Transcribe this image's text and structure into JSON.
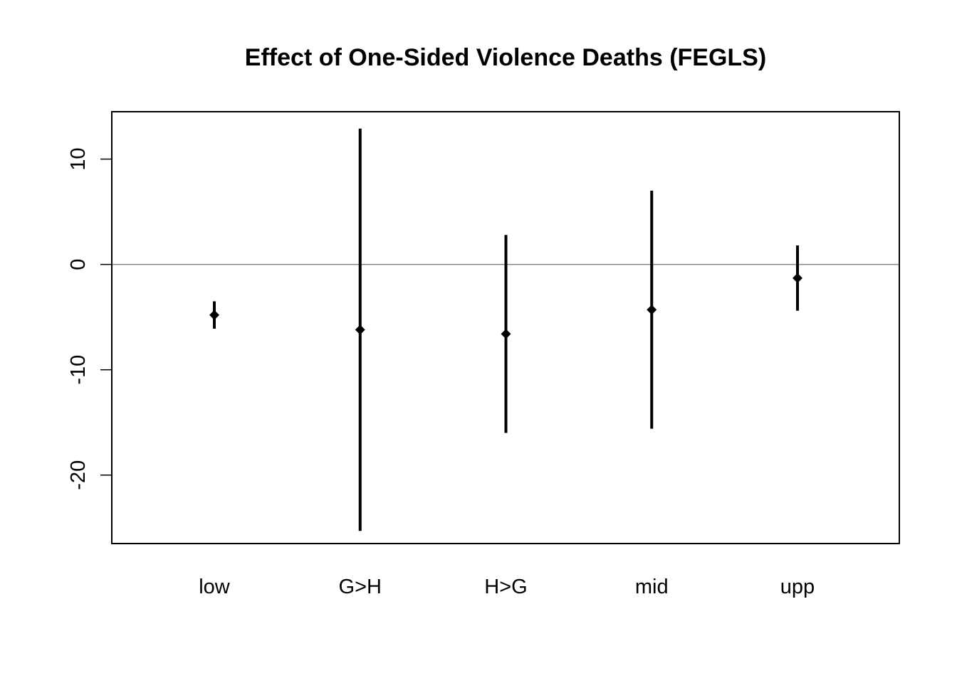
{
  "chart_data": {
    "type": "scatter",
    "title": "Effect of One-Sided Violence Deaths (FEGLS)",
    "xlabel": "",
    "ylabel": "",
    "categories": [
      "low",
      "G>H",
      "H>G",
      "mid",
      "upp"
    ],
    "estimates": [
      -4.8,
      -6.2,
      -6.6,
      -4.3,
      -1.3
    ],
    "lower": [
      -6.1,
      -25.3,
      -16.0,
      -15.6,
      -4.4
    ],
    "upper": [
      -3.5,
      12.9,
      2.8,
      7.0,
      1.8
    ],
    "ylim": [
      -26.5,
      14.5
    ],
    "yticks": [
      -20,
      -10,
      0,
      10
    ],
    "ytick_labels": [
      "-20",
      "-10",
      "0",
      "10"
    ],
    "reference_line": 0,
    "grid": false,
    "legend": "none",
    "colors": {
      "marks": "#000000",
      "reference_line": "#7f7f7f",
      "frame": "#000000",
      "background": "#ffffff"
    }
  }
}
